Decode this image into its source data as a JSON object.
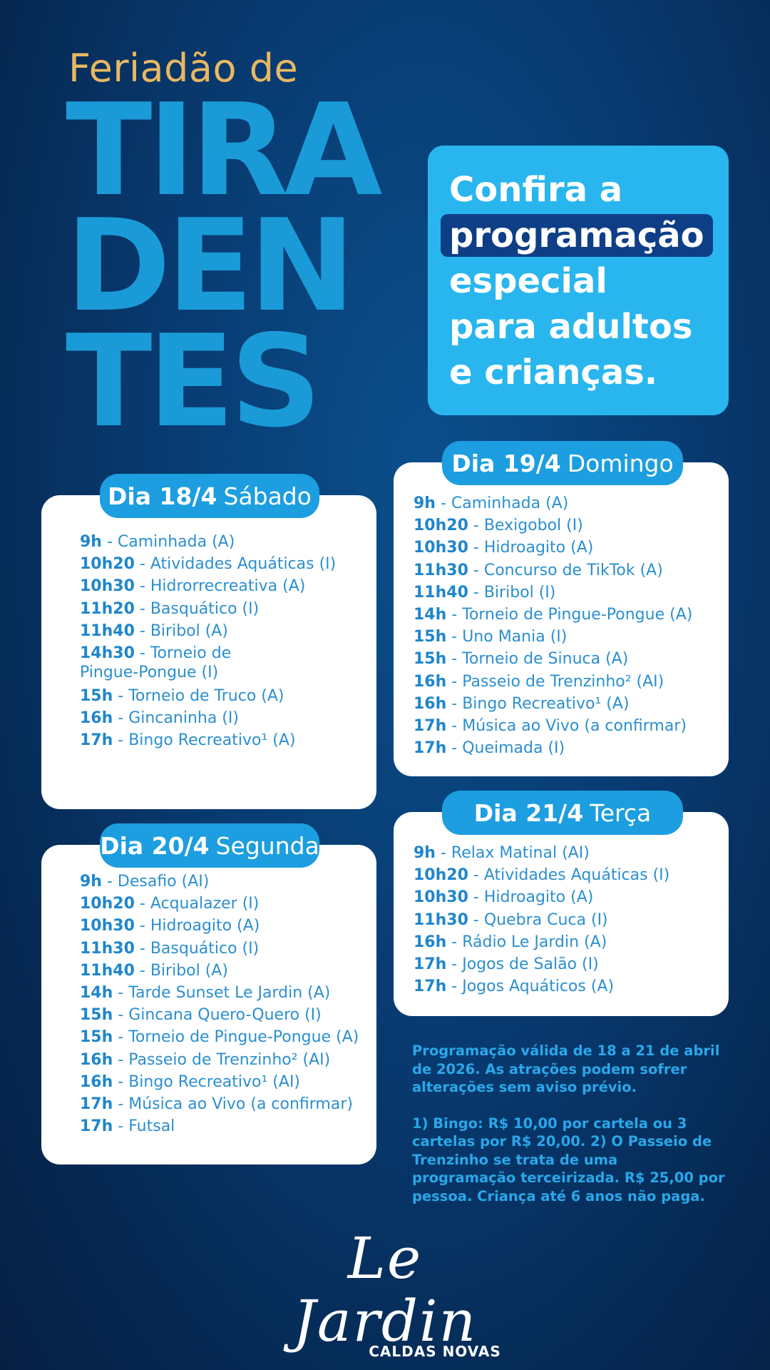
{
  "header": {
    "pre_title": "Feriadão de",
    "title_lines": [
      "TIRA",
      "DEN",
      "TES"
    ]
  },
  "promo": {
    "line1": "Confira a",
    "highlight": "programação",
    "line3": "especial",
    "line4": "para adultos",
    "line5": "e crianças."
  },
  "days": [
    {
      "date": "Dia 18/4",
      "weekday": "Sábado",
      "items": [
        {
          "time": "9h",
          "text": " - Caminhada (A)"
        },
        {
          "time": "10h20",
          "text": " - Atividades Aquáticas (I)"
        },
        {
          "time": "10h30",
          "text": " - Hidrorrecreativa (A)"
        },
        {
          "time": "11h20",
          "text": " - Basquático (I)"
        },
        {
          "time": "11h40",
          "text": " - Biribol (A)"
        },
        {
          "time": "14h30",
          "text": " - Torneio de Pingue-Pongue (I)"
        },
        {
          "time": "15h",
          "text": " - Torneio de Truco (A)"
        },
        {
          "time": "16h",
          "text": " - Gincaninha (I)"
        },
        {
          "time": "17h",
          "text": " - Bingo Recreativo¹ (A)"
        }
      ]
    },
    {
      "date": "Dia 19/4",
      "weekday": "Domingo",
      "items": [
        {
          "time": "9h",
          "text": " - Caminhada (A)"
        },
        {
          "time": "10h20",
          "text": " - Bexigobol (I)"
        },
        {
          "time": "10h30",
          "text": " - Hidroagito (A)"
        },
        {
          "time": "11h30",
          "text": " - Concurso de TikTok (A)"
        },
        {
          "time": "11h40",
          "text": " - Biribol (I)"
        },
        {
          "time": "14h",
          "text": " - Torneio de Pingue-Pongue (A)"
        },
        {
          "time": "15h",
          "text": " - Uno Mania (I)"
        },
        {
          "time": "15h",
          "text": " - Torneio de Sinuca (A)"
        },
        {
          "time": "16h",
          "text": " - Passeio de Trenzinho² (AI)"
        },
        {
          "time": "16h",
          "text": " - Bingo Recreativo¹ (A)"
        },
        {
          "time": "17h",
          "text": " - Música ao Vivo (a confirmar)"
        },
        {
          "time": "17h",
          "text": " - Queimada (I)"
        }
      ]
    },
    {
      "date": "Dia 20/4",
      "weekday": "Segunda",
      "items": [
        {
          "time": "9h",
          "text": " - Desafio (AI)"
        },
        {
          "time": "10h20",
          "text": " - Acqualazer (I)"
        },
        {
          "time": "10h30",
          "text": " - Hidroagito (A)"
        },
        {
          "time": "11h30",
          "text": " - Basquático (I)"
        },
        {
          "time": "11h40",
          "text": " - Biribol (A)"
        },
        {
          "time": "14h",
          "text": " - Tarde Sunset Le Jardin (A)"
        },
        {
          "time": "15h",
          "text": " - Gincana Quero-Quero (I)"
        },
        {
          "time": "15h",
          "text": " - Torneio de Pingue-Pongue (A)"
        },
        {
          "time": "16h",
          "text": " - Passeio de Trenzinho² (AI)"
        },
        {
          "time": "16h",
          "text": " - Bingo Recreativo¹ (AI)"
        },
        {
          "time": "17h",
          "text": " - Música ao Vivo (a confirmar)"
        },
        {
          "time": "17h",
          "text": " - Futsal"
        }
      ]
    },
    {
      "date": "Dia 21/4",
      "weekday": "Terça",
      "items": [
        {
          "time": "9h",
          "text": " - Relax Matinal (AI)"
        },
        {
          "time": "10h20",
          "text": " - Atividades Aquáticas (I)"
        },
        {
          "time": "10h30",
          "text": " - Hidroagito (A)"
        },
        {
          "time": "11h30",
          "text": " - Quebra Cuca (I)"
        },
        {
          "time": "16h",
          "text": " - Rádio Le Jardin (A)"
        },
        {
          "time": "17h",
          "text": " - Jogos de Salão (I)"
        },
        {
          "time": "17h",
          "text": " - Jogos Aquáticos (A)"
        }
      ]
    }
  ],
  "notes": {
    "validity": "Programação válida de 18 a 21 de abril de 2026. As atrações podem sofrer alterações sem aviso prévio.",
    "footnotes": "1) Bingo: R$ 10,00 por cartela ou 3 cartelas por R$ 20,00. 2) O Passeio de Trenzinho se trata de uma programação terceirizada. R$ 25,00 por pessoa. Criança até 6 anos não paga."
  },
  "logo": {
    "name": "Le Jardin",
    "location": "CALDAS NOVAS"
  },
  "colors": {
    "background": "#083a70",
    "gold": "#e8b862",
    "title_blue": "#1a9bd8",
    "promo_box": "#29b6ee",
    "highlight": "#0e3f86",
    "pill": "#1c9ee0",
    "list_text": "#2b8fd0"
  }
}
